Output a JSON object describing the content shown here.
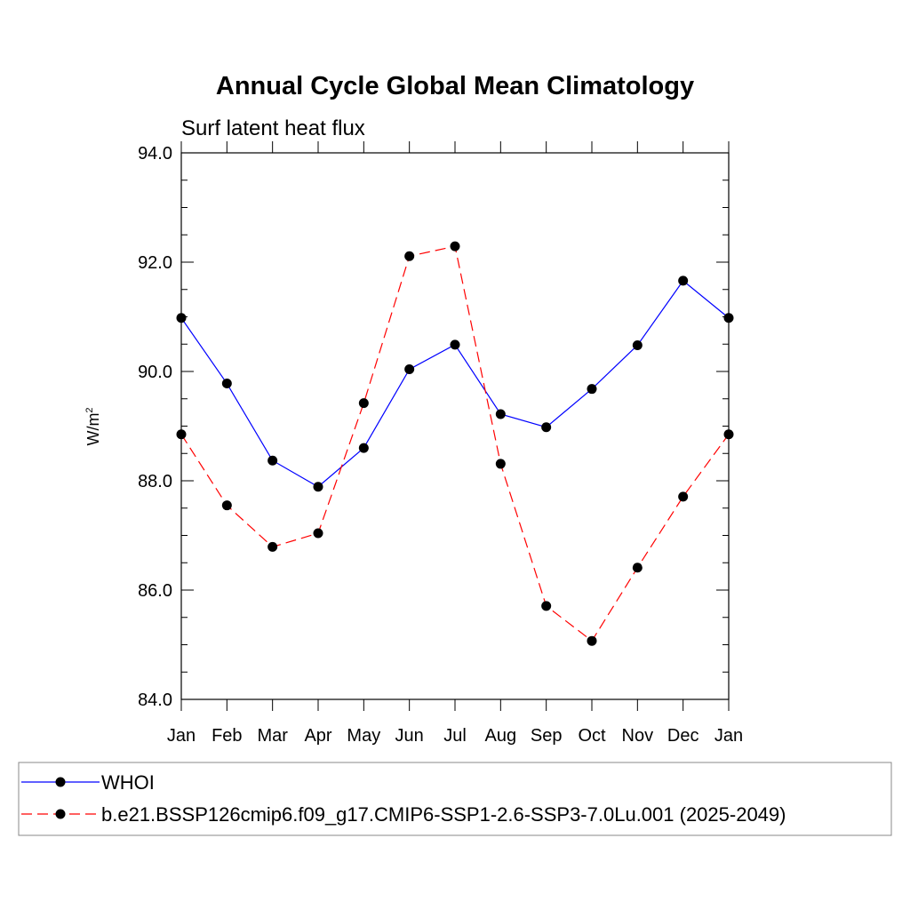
{
  "chart_data": {
    "type": "line",
    "title": "Annual Cycle Global Mean Climatology",
    "subtitle": "Surf latent heat flux",
    "ylabel_base": "W/m",
    "ylabel_exp": "2",
    "xlabel": "",
    "categories": [
      "Jan",
      "Feb",
      "Mar",
      "Apr",
      "May",
      "Jun",
      "Jul",
      "Aug",
      "Sep",
      "Oct",
      "Nov",
      "Dec",
      "Jan"
    ],
    "ylim": [
      84.0,
      94.0
    ],
    "yticks": [
      84.0,
      86.0,
      88.0,
      90.0,
      92.0,
      94.0
    ],
    "ytick_labels": [
      "84.0",
      "86.0",
      "88.0",
      "90.0",
      "92.0",
      "94.0"
    ],
    "grid": false,
    "legend_position": "bottom",
    "series": [
      {
        "name": "WHOI",
        "color": "#0000ff",
        "style": "solid",
        "values": [
          90.98,
          89.78,
          88.37,
          87.89,
          88.6,
          90.04,
          90.49,
          89.22,
          88.98,
          89.68,
          90.48,
          91.66,
          90.98
        ]
      },
      {
        "name": "b.e21.BSSP126cmip6.f09_g17.CMIP6-SSP1-2.6-SSP3-7.0Lu.001 (2025-2049)",
        "color": "#ff0000",
        "style": "dashed",
        "values": [
          88.85,
          87.55,
          86.79,
          87.04,
          89.42,
          92.11,
          92.29,
          88.31,
          85.71,
          85.07,
          86.41,
          87.71,
          88.85
        ]
      }
    ]
  }
}
